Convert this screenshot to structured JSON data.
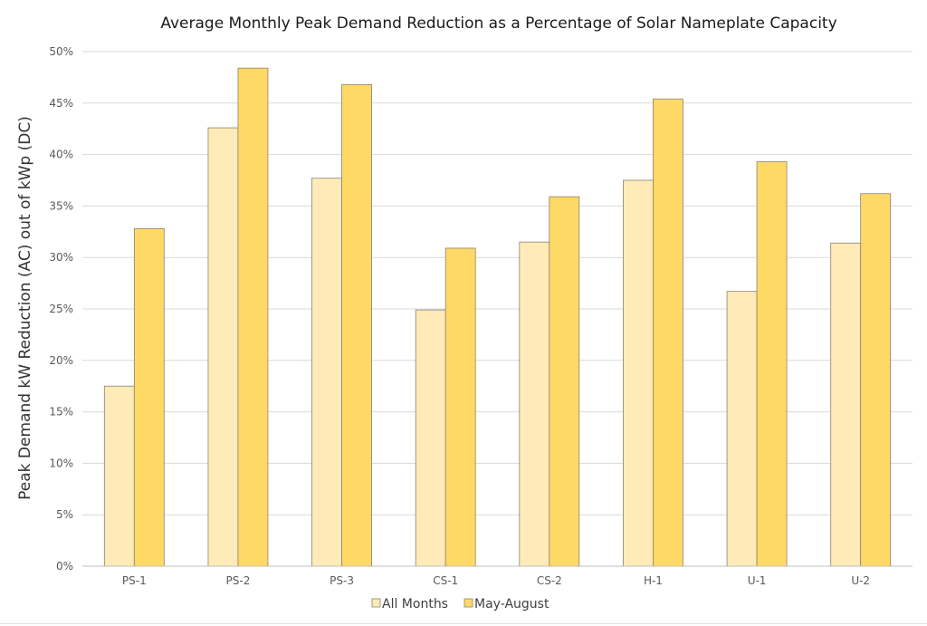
{
  "chart_data": {
    "type": "bar",
    "title": "Average Monthly Peak Demand Reduction as a Percentage of Solar Nameplate Capacity",
    "xlabel": "",
    "ylabel": "Peak Demand kW Reduction (AC) out of kWp (DC)",
    "ylim": [
      0,
      50
    ],
    "yticks": [
      "0%",
      "5%",
      "10%",
      "15%",
      "20%",
      "25%",
      "30%",
      "35%",
      "40%",
      "45%",
      "50%"
    ],
    "categories": [
      "PS-1",
      "PS-2",
      "PS-3",
      "CS-1",
      "CS-2",
      "H-1",
      "U-1",
      "U-2"
    ],
    "series": [
      {
        "name": "All Months",
        "color": "#FFEBB7",
        "values": [
          17.5,
          42.6,
          37.7,
          24.9,
          31.5,
          37.5,
          26.7,
          31.4
        ]
      },
      {
        "name": "May-August",
        "color": "#FFD966",
        "values": [
          32.8,
          48.4,
          46.8,
          30.9,
          35.9,
          45.4,
          39.3,
          36.2
        ]
      }
    ],
    "grid": true,
    "legend_position": "bottom"
  }
}
